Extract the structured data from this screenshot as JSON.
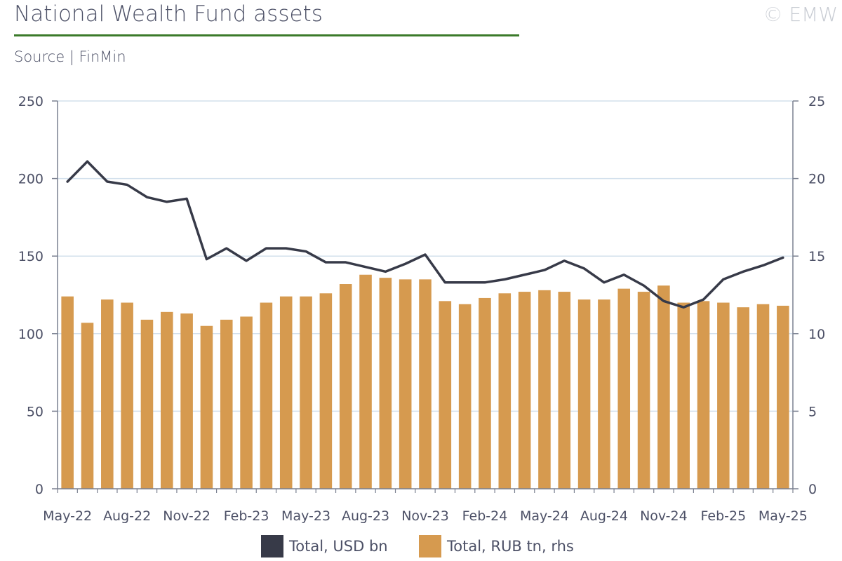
{
  "title": "National Wealth Fund assets",
  "copyright": "© EMW",
  "source": "Source | FinMin",
  "chart_data": {
    "type": "bar",
    "categories": [
      "May-22",
      "Jun-22",
      "Jul-22",
      "Aug-22",
      "Sep-22",
      "Oct-22",
      "Nov-22",
      "Dec-22",
      "Jan-23",
      "Feb-23",
      "Mar-23",
      "Apr-23",
      "May-23",
      "Jun-23",
      "Jul-23",
      "Aug-23",
      "Sep-23",
      "Oct-23",
      "Nov-23",
      "Dec-23",
      "Jan-24",
      "Feb-24",
      "Mar-24",
      "Apr-24",
      "May-24",
      "Jun-24",
      "Jul-24",
      "Aug-24",
      "Sep-24",
      "Oct-24",
      "Nov-24",
      "Dec-24",
      "Jan-25",
      "Feb-25",
      "Mar-25",
      "Apr-25",
      "May-25"
    ],
    "x_tick_labels": [
      "May-22",
      "Aug-22",
      "Nov-22",
      "Feb-23",
      "May-23",
      "Aug-23",
      "Nov-23",
      "Feb-24",
      "May-24",
      "Aug-24",
      "Nov-24",
      "Feb-25",
      "May-25"
    ],
    "left_axis": {
      "ylim": [
        0,
        250
      ],
      "ticks": [
        "0",
        "50",
        "100",
        "150",
        "200",
        "250"
      ]
    },
    "right_axis": {
      "ylim": [
        0,
        25
      ],
      "ticks": [
        "0",
        "5",
        "10",
        "15",
        "20",
        "25"
      ]
    },
    "grid": true,
    "series": [
      {
        "name": "Total, USD bn",
        "type": "line",
        "axis": "left",
        "color": "#373a48",
        "values": [
          198,
          211,
          198,
          196,
          188,
          185,
          187,
          148,
          155,
          147,
          155,
          155,
          153,
          146,
          146,
          143,
          140,
          145,
          151,
          133,
          133,
          133,
          135,
          138,
          141,
          147,
          142,
          133,
          138,
          131,
          121,
          117,
          122,
          135,
          140,
          144,
          149
        ]
      },
      {
        "name": "Total, RUB tn, rhs",
        "type": "bar",
        "axis": "right",
        "color": "#d69a4f",
        "values": [
          12.4,
          10.7,
          12.2,
          12.0,
          10.9,
          11.4,
          11.3,
          10.5,
          10.9,
          11.1,
          12.0,
          12.4,
          12.4,
          12.6,
          13.2,
          13.8,
          13.6,
          13.5,
          13.5,
          12.1,
          11.9,
          12.3,
          12.6,
          12.7,
          12.8,
          12.7,
          12.2,
          12.2,
          12.9,
          12.7,
          13.1,
          12.0,
          12.1,
          12.0,
          11.7,
          11.9,
          11.8
        ]
      }
    ],
    "legend": "bottom"
  }
}
